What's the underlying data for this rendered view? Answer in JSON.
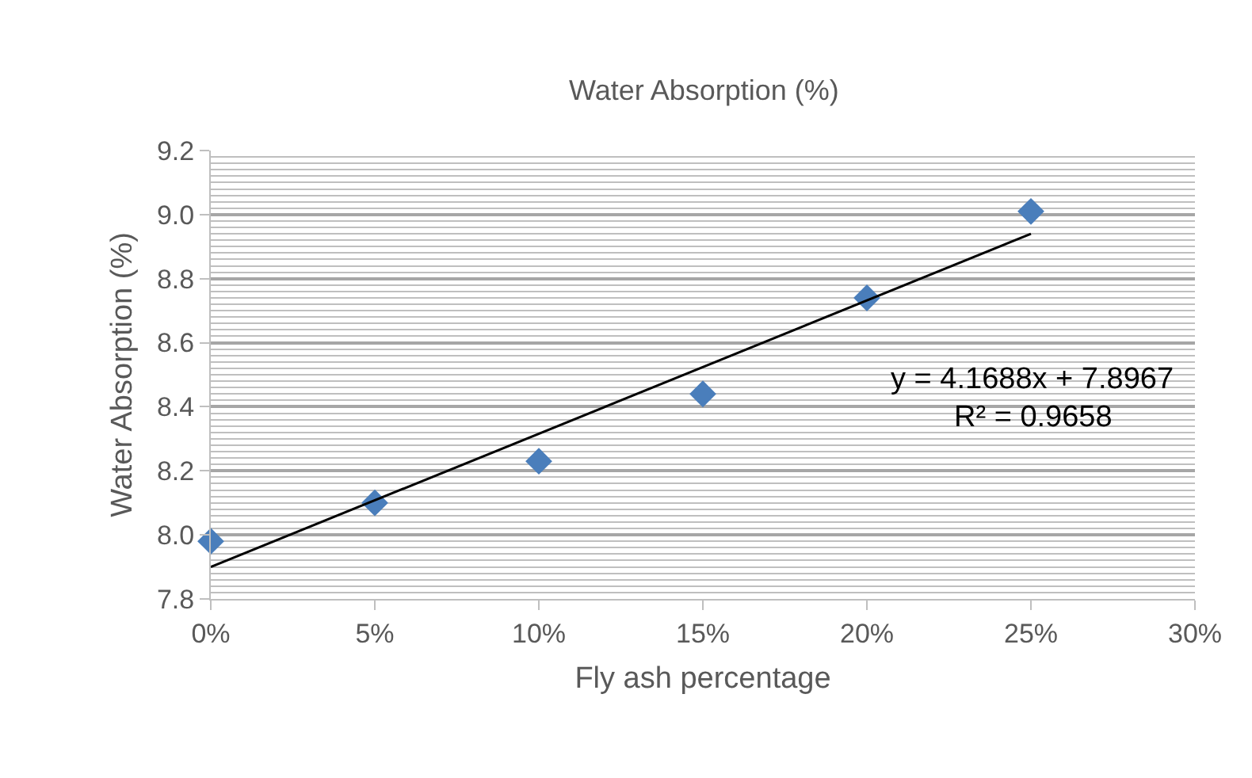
{
  "chart_data": {
    "type": "scatter",
    "title": "Water Absorption (%)",
    "xlabel": "Fly ash percentage",
    "ylabel": "Water Absorption (%)",
    "x": [
      0,
      0.05,
      0.1,
      0.15,
      0.2,
      0.25
    ],
    "series": [
      {
        "type": "scatter",
        "color": "#4a7ebb",
        "marker": "diamond",
        "values": [
          7.98,
          8.1,
          8.23,
          8.44,
          8.74,
          9.01
        ]
      },
      {
        "type": "line",
        "color": "#000000",
        "marker": "none",
        "x": [
          0,
          0.25
        ],
        "values": [
          7.9,
          8.94
        ]
      }
    ],
    "xlim": [
      0,
      0.3
    ],
    "xticks": [
      {
        "value": 0,
        "label": "0%"
      },
      {
        "value": 0.05,
        "label": "5%"
      },
      {
        "value": 0.1,
        "label": "10%"
      },
      {
        "value": 0.15,
        "label": "15%"
      },
      {
        "value": 0.2,
        "label": "20%"
      },
      {
        "value": 0.25,
        "label": "25%"
      },
      {
        "value": 0.3,
        "label": "30%"
      }
    ],
    "ylim": [
      7.8,
      9.2
    ],
    "yticks": [
      7.8,
      {
        "value": 8,
        "label": "8.0"
      },
      8.2,
      8.4,
      8.6,
      8.8,
      {
        "value": 9,
        "label": "9.0"
      },
      9.2
    ],
    "grid": "y",
    "annotations": [
      "y = 4.1688x + 7.8967",
      "R² = 0.9658"
    ]
  }
}
